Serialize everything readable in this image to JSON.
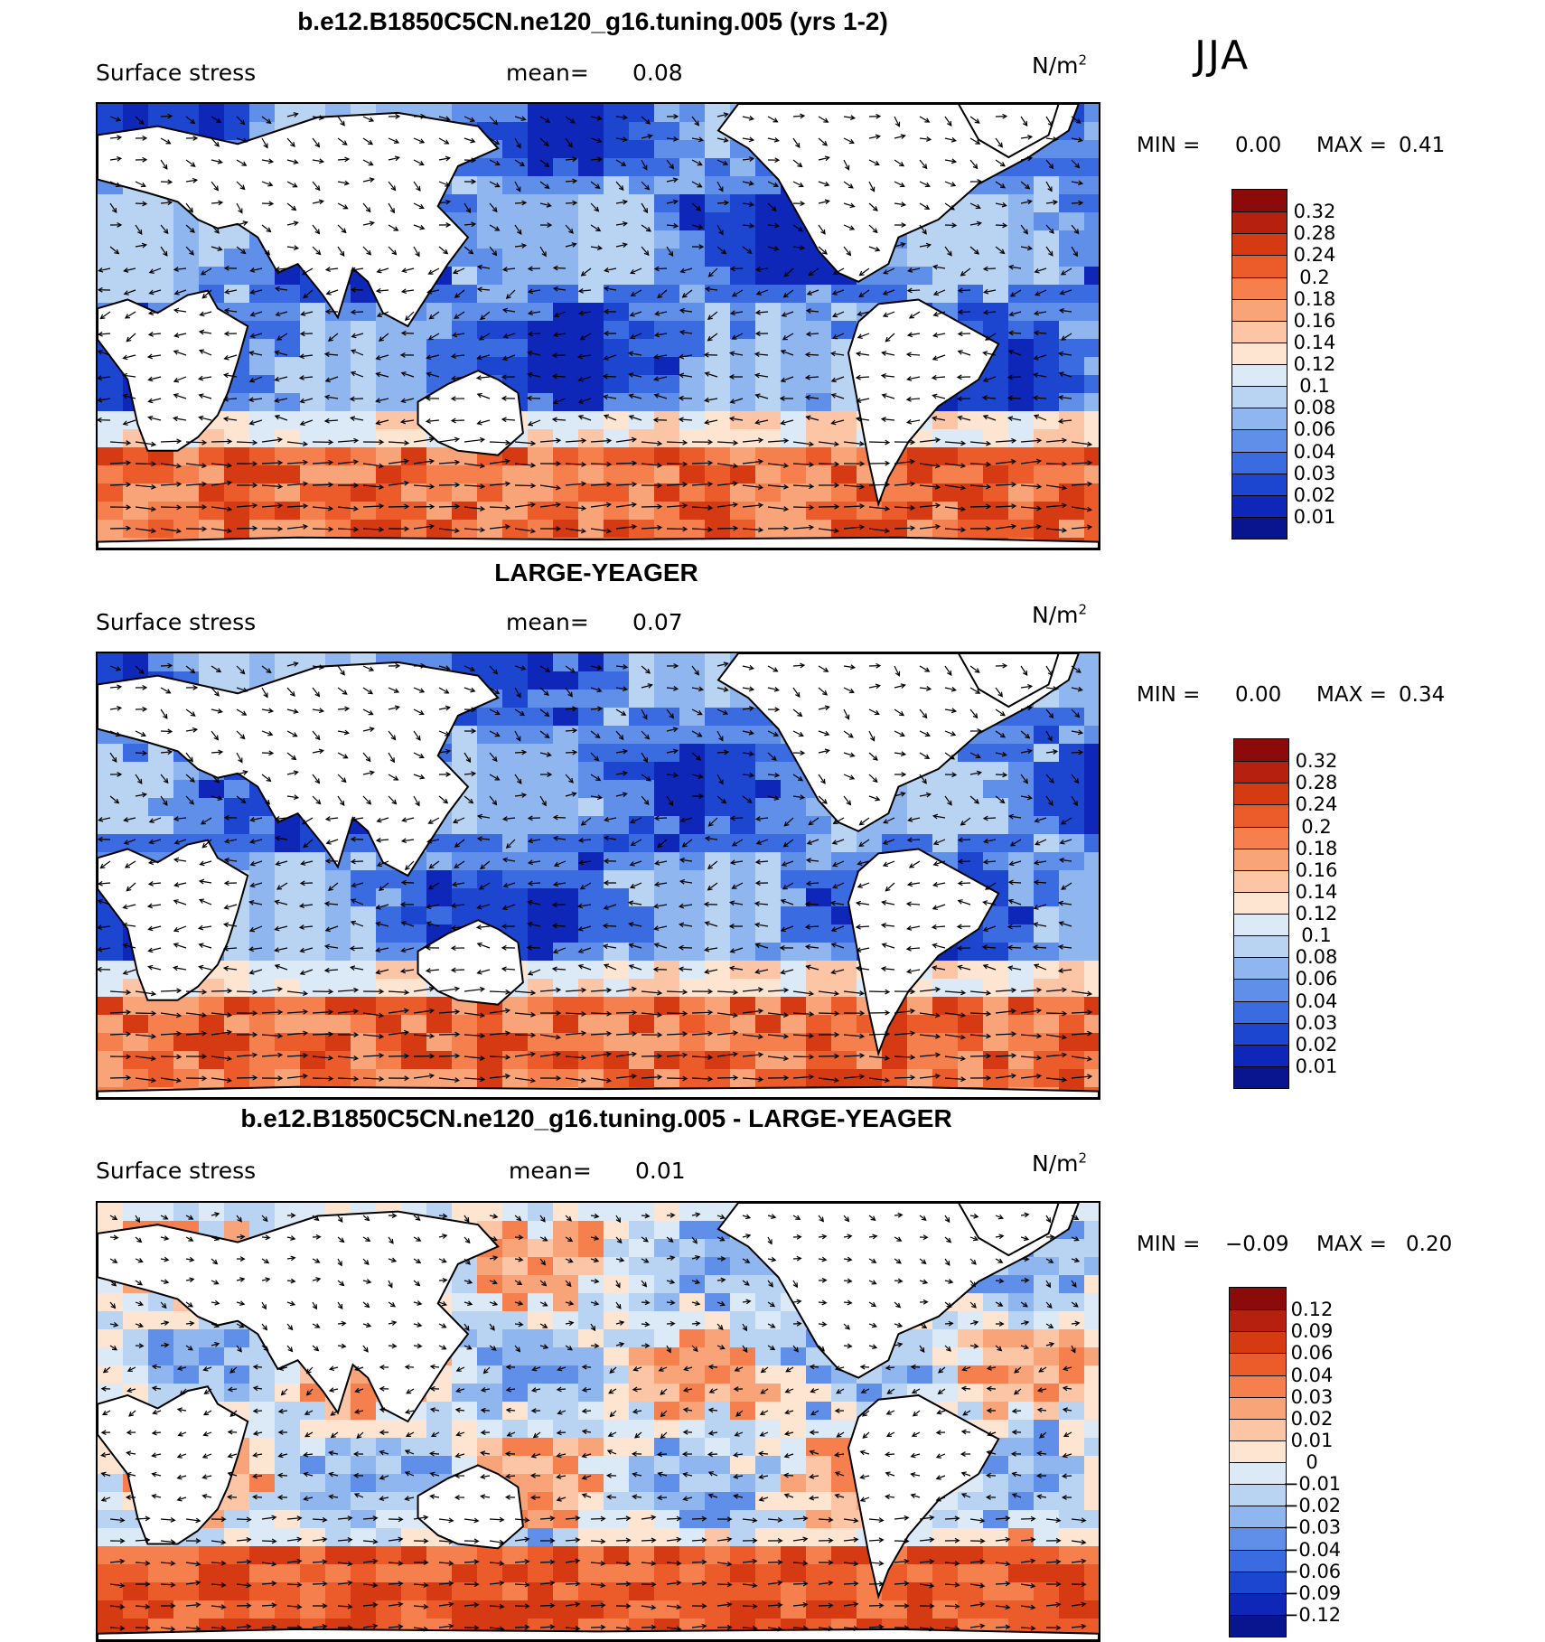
{
  "season": "JJA",
  "panels": [
    {
      "title": "b.e12.B1850C5CN.ne120_g16.tuning.005 (yrs 1-2)",
      "variable": "Surface stress",
      "mean_label": "mean=",
      "mean_value": "0.08",
      "units": "N/m",
      "units_exp": "2",
      "min_label": "MIN =",
      "min_value": "0.00",
      "max_label": "MAX =",
      "max_value": "0.41",
      "colorbar": {
        "colors": [
          "#8b0a0a",
          "#b5200f",
          "#d63a12",
          "#ec5b2a",
          "#f5804e",
          "#f9a379",
          "#fcc5a6",
          "#fde5d2",
          "#dceaf8",
          "#b9d3f2",
          "#8fb6ee",
          "#5f8fe8",
          "#3a6be0",
          "#1d46d0",
          "#0e27b8",
          "#08158f"
        ],
        "labels": [
          "0.32",
          "0.28",
          "0.24",
          "0.2",
          "0.18",
          "0.16",
          "0.14",
          "0.12",
          "0.1",
          "0.08",
          "0.06",
          "0.04",
          "0.03",
          "0.02",
          "0.01"
        ]
      }
    },
    {
      "title": "LARGE-YEAGER",
      "variable": "Surface stress",
      "mean_label": "mean=",
      "mean_value": "0.07",
      "units": "N/m",
      "units_exp": "2",
      "min_label": "MIN =",
      "min_value": "0.00",
      "max_label": "MAX =",
      "max_value": "0.34",
      "colorbar": {
        "colors": [
          "#8b0a0a",
          "#b5200f",
          "#d63a12",
          "#ec5b2a",
          "#f5804e",
          "#f9a379",
          "#fcc5a6",
          "#fde5d2",
          "#dceaf8",
          "#b9d3f2",
          "#8fb6ee",
          "#5f8fe8",
          "#3a6be0",
          "#1d46d0",
          "#0e27b8",
          "#08158f"
        ],
        "labels": [
          "0.32",
          "0.28",
          "0.24",
          "0.2",
          "0.18",
          "0.16",
          "0.14",
          "0.12",
          "0.1",
          "0.08",
          "0.06",
          "0.04",
          "0.03",
          "0.02",
          "0.01"
        ]
      }
    },
    {
      "title": "b.e12.B1850C5CN.ne120_g16.tuning.005 - LARGE-YEAGER",
      "variable": "Surface stress",
      "mean_label": "mean=",
      "mean_value": "0.01",
      "units": "N/m",
      "units_exp": "2",
      "min_label": "MIN =",
      "min_value": "−0.09",
      "max_label": "MAX =",
      "max_value": "0.20",
      "colorbar": {
        "colors": [
          "#8b0a0a",
          "#b5200f",
          "#d63a12",
          "#ec5b2a",
          "#f5804e",
          "#f9a379",
          "#fcc5a6",
          "#fde5d2",
          "#dceaf8",
          "#b9d3f2",
          "#8fb6ee",
          "#5f8fe8",
          "#3a6be0",
          "#1d46d0",
          "#0e27b8",
          "#08158f"
        ],
        "labels": [
          "0.12",
          "0.09",
          "0.06",
          "0.04",
          "0.03",
          "0.02",
          "0.01",
          "0",
          "−0.01",
          "−0.02",
          "−0.03",
          "−0.04",
          "−0.06",
          "−0.09",
          "−0.12"
        ]
      }
    }
  ]
}
